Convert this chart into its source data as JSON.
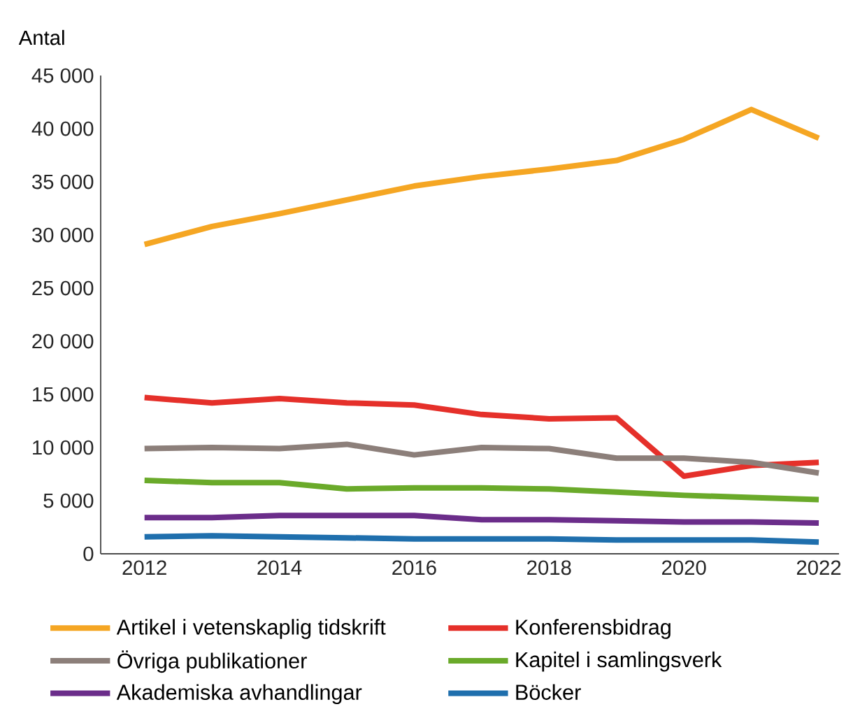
{
  "chart_data": {
    "type": "line",
    "ylabel": "Antal",
    "x": [
      2012,
      2013,
      2014,
      2015,
      2016,
      2017,
      2018,
      2019,
      2020,
      2021,
      2022
    ],
    "series": [
      {
        "name": "Artikel i vetenskaplig tidskrift",
        "color": "#f5a623",
        "values": [
          29100,
          30800,
          32000,
          33300,
          34600,
          35500,
          36200,
          37000,
          39000,
          41800,
          39100
        ]
      },
      {
        "name": "Konferensbidrag",
        "color": "#e5302a",
        "values": [
          14700,
          14200,
          14600,
          14200,
          14000,
          13100,
          12700,
          12800,
          7300,
          8300,
          8600
        ]
      },
      {
        "name": "Övriga publikationer",
        "color": "#8c7f7a",
        "values": [
          9900,
          10000,
          9900,
          10300,
          9300,
          10000,
          9900,
          9000,
          9000,
          8600,
          7600
        ]
      },
      {
        "name": "Kapitel i samlingsverk",
        "color": "#6aaa2a",
        "values": [
          6900,
          6700,
          6700,
          6100,
          6200,
          6200,
          6100,
          5800,
          5500,
          5300,
          5100
        ]
      },
      {
        "name": "Akademiska avhandlingar",
        "color": "#6b2d8a",
        "values": [
          3400,
          3400,
          3600,
          3600,
          3600,
          3200,
          3200,
          3100,
          3000,
          3000,
          2900
        ]
      },
      {
        "name": "Böcker",
        "color": "#1f6fad",
        "values": [
          1600,
          1700,
          1600,
          1500,
          1400,
          1400,
          1400,
          1300,
          1300,
          1300,
          1100
        ]
      }
    ],
    "xlim": [
      2011.35,
      2022.3
    ],
    "ylim": [
      0,
      45000
    ],
    "xticks": [
      2012,
      2014,
      2016,
      2018,
      2020,
      2022
    ],
    "yticks": [
      0,
      {
        "value": 5000,
        "label": "5 000"
      },
      {
        "value": 10000,
        "label": "10 000"
      },
      {
        "value": 15000,
        "label": "15 000"
      },
      {
        "value": 20000,
        "label": "20 000"
      },
      {
        "value": 25000,
        "label": "25 000"
      },
      {
        "value": 30000,
        "label": "30 000"
      },
      {
        "value": 35000,
        "label": "35 000"
      },
      {
        "value": 40000,
        "label": "40 000"
      },
      {
        "value": 45000,
        "label": "45 000"
      }
    ],
    "legend": "bottom",
    "grid": false,
    "marker": "none",
    "line_style": "solid"
  }
}
